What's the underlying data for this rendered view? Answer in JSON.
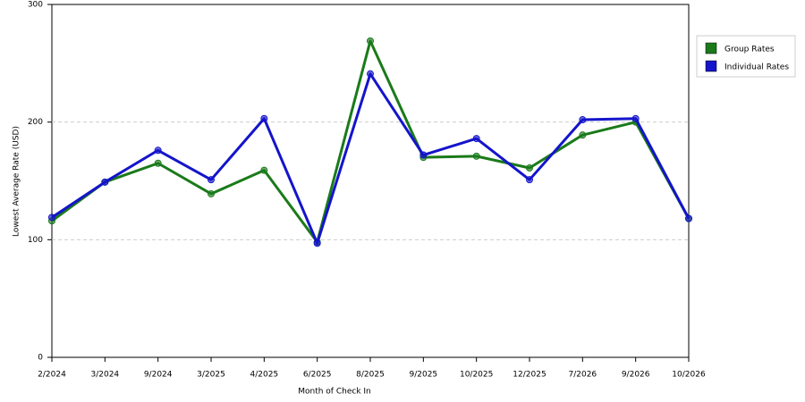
{
  "chart_data": {
    "type": "line",
    "x_label": "Month of Check In",
    "y_label": "Lowest Average Rate (USD)",
    "categories": [
      "2/2024",
      "3/2024",
      "9/2024",
      "3/2025",
      "4/2025",
      "6/2025",
      "8/2025",
      "9/2025",
      "10/2025",
      "12/2025",
      "7/2026",
      "9/2026",
      "10/2026"
    ],
    "series": [
      {
        "name": "Group Rates",
        "color": "#1a7a1a",
        "values": [
          116,
          149,
          165,
          139,
          159,
          98,
          269,
          170,
          171,
          161,
          189,
          200,
          118
        ]
      },
      {
        "name": "Individual Rates",
        "color": "#1414cc",
        "values": [
          119,
          149,
          176,
          151,
          203,
          97,
          241,
          172,
          186,
          151,
          202,
          203,
          118
        ]
      }
    ],
    "ylim": [
      0,
      300
    ],
    "yticks": [
      0,
      100,
      200,
      300
    ],
    "grid": true,
    "legend": "right"
  }
}
